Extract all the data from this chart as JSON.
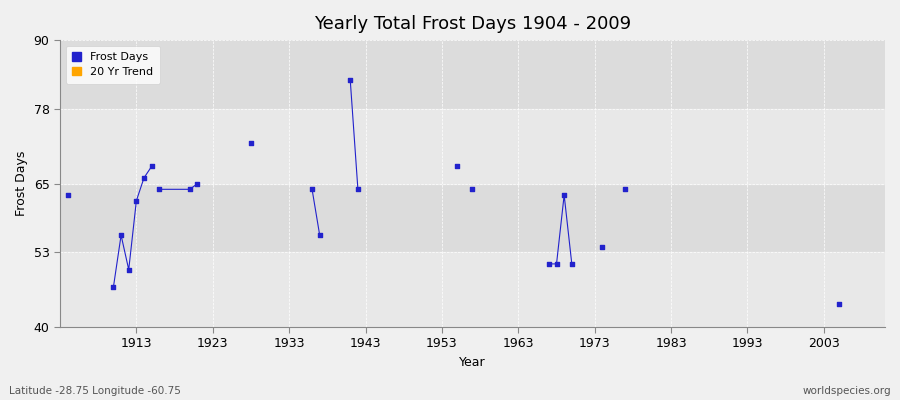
{
  "title": "Yearly Total Frost Days 1904 - 2009",
  "xlabel": "Year",
  "ylabel": "Frost Days",
  "subtitle_lat": "Latitude -28.75 Longitude -60.75",
  "watermark": "worldspecies.org",
  "xlim": [
    1903,
    2011
  ],
  "ylim": [
    40,
    90
  ],
  "yticks": [
    40,
    53,
    65,
    78,
    90
  ],
  "xticks": [
    1913,
    1923,
    1933,
    1943,
    1953,
    1963,
    1973,
    1983,
    1993,
    2003
  ],
  "fig_bg_color": "#f0f0f0",
  "plot_bg_color": "#dcdcdc",
  "band_light_color": "#e8e8e8",
  "line_color": "#2222cc",
  "frost_days_color": "#2222cc",
  "trend_color": "#ffa500",
  "data_points": [
    [
      1904,
      63
    ],
    [
      1910,
      47
    ],
    [
      1911,
      56
    ],
    [
      1912,
      50
    ],
    [
      1913,
      62
    ],
    [
      1914,
      66
    ],
    [
      1915,
      68
    ],
    [
      1916,
      64
    ],
    [
      1920,
      64
    ],
    [
      1921,
      65
    ],
    [
      1928,
      72
    ],
    [
      1936,
      64
    ],
    [
      1937,
      56
    ],
    [
      1941,
      83
    ],
    [
      1942,
      64
    ],
    [
      1955,
      68
    ],
    [
      1957,
      64
    ],
    [
      1967,
      51
    ],
    [
      1968,
      51
    ],
    [
      1969,
      63
    ],
    [
      1970,
      51
    ],
    [
      1974,
      54
    ],
    [
      1977,
      64
    ],
    [
      2005,
      44
    ]
  ],
  "connected_groups": [
    [
      1904
    ],
    [
      1910,
      1911,
      1912,
      1913,
      1914,
      1915
    ],
    [
      1916,
      1920,
      1921
    ],
    [
      1928
    ],
    [
      1936,
      1937
    ],
    [
      1941,
      1942
    ],
    [
      1955
    ],
    [
      1957
    ],
    [
      1967,
      1968,
      1969,
      1970
    ],
    [
      1974
    ],
    [
      1977
    ],
    [
      2005
    ]
  ],
  "legend_square_size": 6,
  "title_fontsize": 13,
  "axis_fontsize": 9,
  "tick_fontsize": 9
}
